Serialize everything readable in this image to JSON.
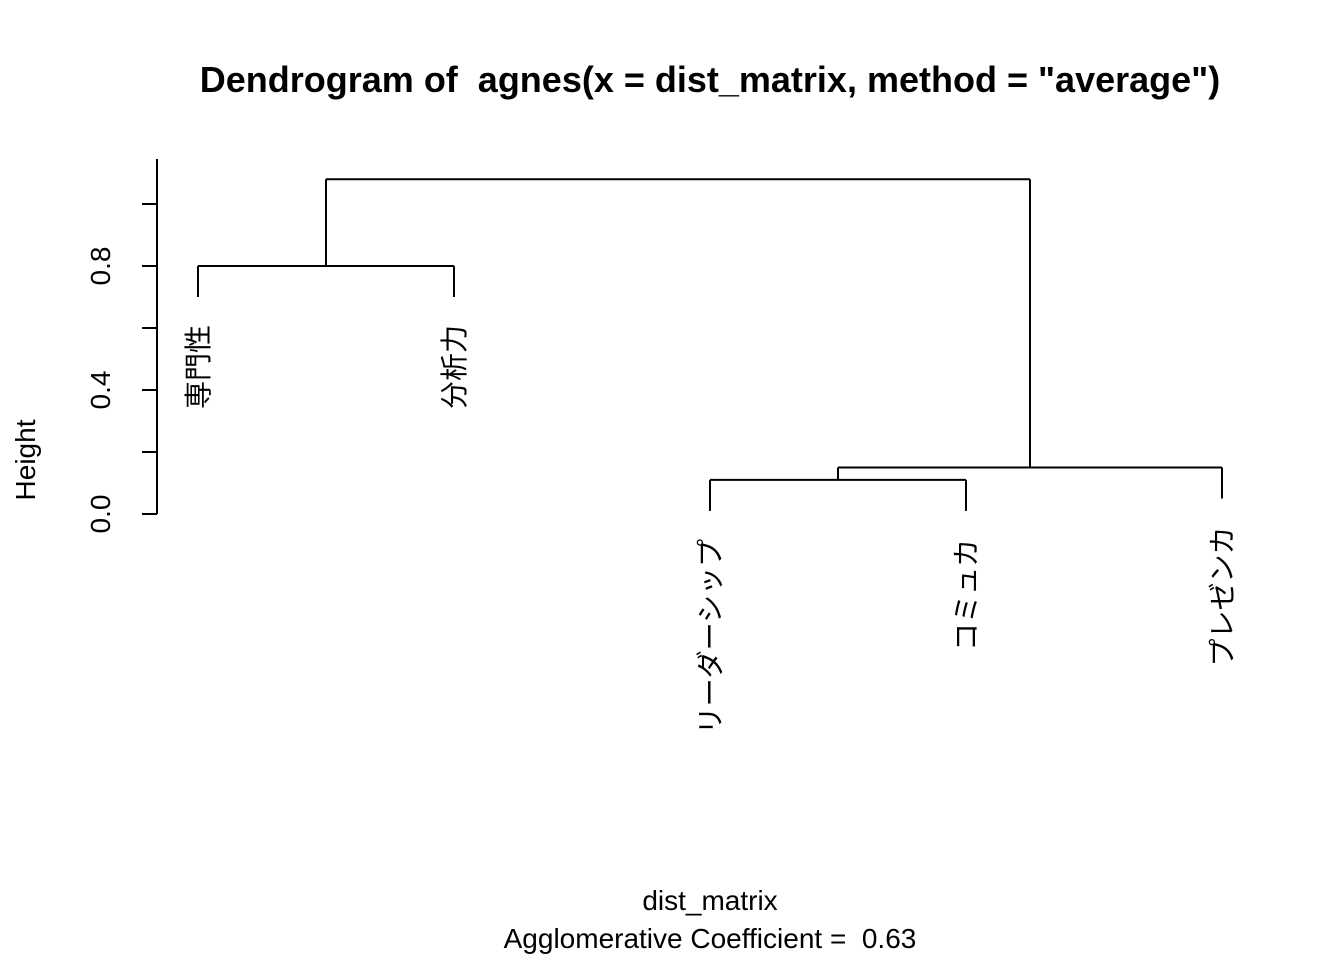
{
  "chart_data": {
    "type": "dendrogram",
    "title": "Dendrogram of  agnes(x = dist_matrix, method = \"average\")",
    "ylabel": "Height",
    "xlabel": "dist_matrix",
    "subtitle": "Agglomerative Coefficient =  0.63",
    "ylim": [
      0,
      1.15
    ],
    "yticks": [
      0.0,
      0.2,
      0.4,
      0.6,
      0.8,
      1.0
    ],
    "ytick_labels": [
      "0.0",
      "0.4",
      "0.8"
    ],
    "hang": 0.1,
    "leaves": [
      "専門性",
      "分析力",
      "リーダーシップ",
      "コミュカ",
      "プレゼンカ"
    ],
    "merges": [
      {
        "left": "リーダーシップ",
        "right": "コミュカ",
        "height": 0.11
      },
      {
        "left": "1",
        "right": "プレゼンカ",
        "height": 0.15
      },
      {
        "left": "専門性",
        "right": "分析力",
        "height": 0.8
      },
      {
        "left": "3",
        "right": "2",
        "height": 1.08
      }
    ]
  }
}
